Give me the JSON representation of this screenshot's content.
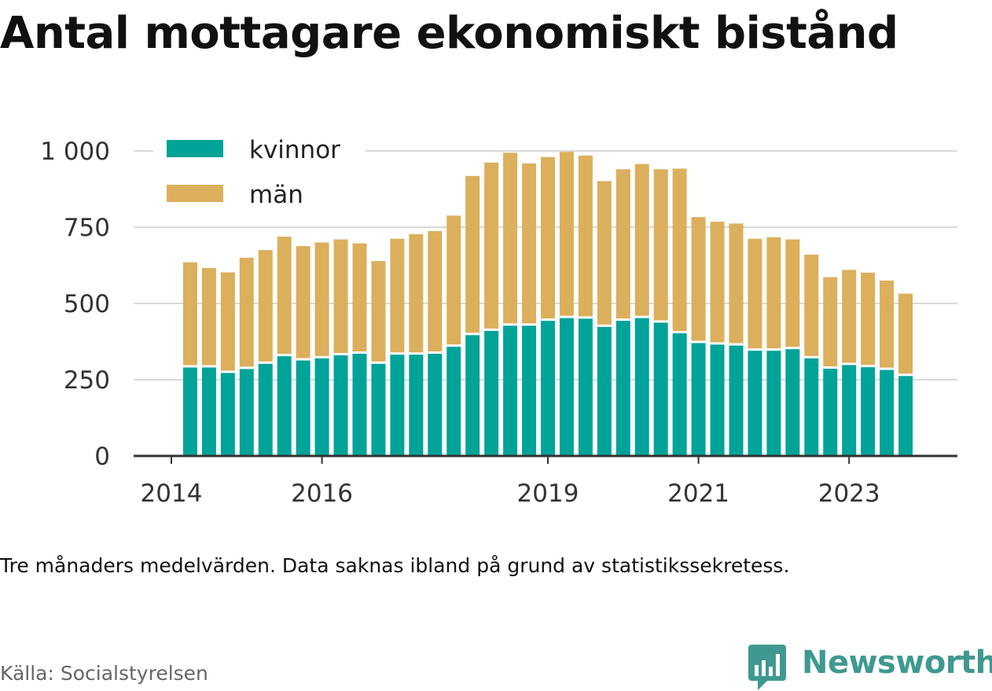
{
  "title": "Antal mottagare ekonomiskt bistånd",
  "note": "Tre månaders medelvärden. Data saknas ibland på grund av statistikssekretess.",
  "source": "Källa: Socialstyrelsen",
  "brand": {
    "name": "Newsworthy",
    "icon": "newsworthy-logo-icon",
    "color": "#3f9990"
  },
  "colors": {
    "kvinnor": "#00a398",
    "man": "#dbaf5c",
    "grid": "#d9d9d9",
    "axis": "#333333"
  },
  "chart_data": {
    "type": "bar",
    "stacked": true,
    "ylim": [
      0,
      1000
    ],
    "yticks": [
      0,
      250,
      500,
      750,
      1000
    ],
    "ytick_labels": [
      "0",
      "250",
      "500",
      "750",
      "1 000"
    ],
    "xlim": [
      2014.0,
      2024.5
    ],
    "xticks": [
      2014,
      2016,
      2019,
      2021,
      2023
    ],
    "xtick_labels": [
      "2014",
      "2016",
      "2019",
      "2021",
      "2023"
    ],
    "legend": {
      "position": "top-left",
      "entries": [
        "kvinnor",
        "män"
      ]
    },
    "grid": true,
    "x": [
      2014.25,
      2014.5,
      2014.75,
      2015.0,
      2015.25,
      2015.5,
      2015.75,
      2016.0,
      2016.25,
      2016.5,
      2016.75,
      2017.0,
      2017.25,
      2017.5,
      2017.75,
      2018.0,
      2018.25,
      2018.5,
      2018.75,
      2019.0,
      2019.25,
      2019.5,
      2019.75,
      2020.0,
      2020.25,
      2020.5,
      2020.75,
      2021.0,
      2021.25,
      2021.5,
      2021.75,
      2022.0,
      2022.25,
      2022.5,
      2022.75,
      2023.0,
      2023.25,
      2023.5,
      2023.75
    ],
    "series": [
      {
        "name": "kvinnor",
        "values": [
          290,
          290,
          272,
          285,
          302,
          327,
          313,
          320,
          330,
          335,
          302,
          332,
          332,
          335,
          358,
          396,
          410,
          427,
          427,
          443,
          452,
          450,
          423,
          443,
          452,
          437,
          402,
          370,
          365,
          362,
          345,
          345,
          350,
          320,
          286,
          298,
          291,
          282,
          262
        ]
      },
      {
        "name": "män",
        "values": [
          345,
          326,
          330,
          365,
          373,
          392,
          375,
          380,
          380,
          362,
          337,
          380,
          395,
          402,
          430,
          522,
          552,
          567,
          532,
          537,
          545,
          535,
          478,
          497,
          505,
          503,
          540,
          413,
          403,
          400,
          367,
          372,
          360,
          340,
          300,
          312,
          310,
          293,
          270
        ]
      }
    ]
  }
}
